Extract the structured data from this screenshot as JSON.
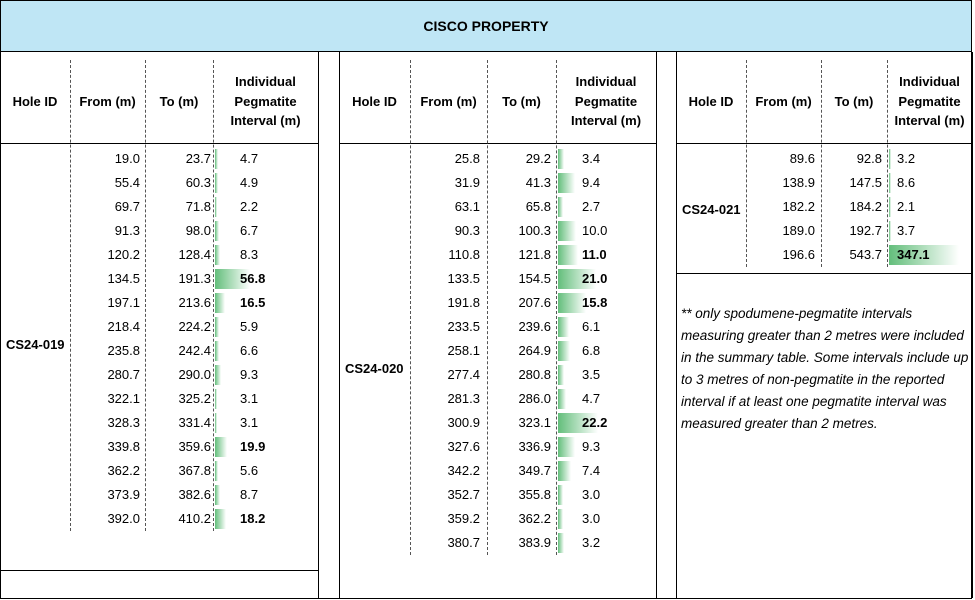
{
  "title": "CISCO PROPERTY",
  "headers": {
    "hole_id": "Hole ID",
    "from": "From (m)",
    "to": "To (m)",
    "interval": "Individual Pegmatite Interval (m)"
  },
  "groups": [
    {
      "hole_id": "CS24-019",
      "rows": [
        {
          "from": "19.0",
          "to": "23.7",
          "interval": "4.7",
          "bold": false
        },
        {
          "from": "55.4",
          "to": "60.3",
          "interval": "4.9",
          "bold": false
        },
        {
          "from": "69.7",
          "to": "71.8",
          "interval": "2.2",
          "bold": false
        },
        {
          "from": "91.3",
          "to": "98.0",
          "interval": "6.7",
          "bold": false
        },
        {
          "from": "120.2",
          "to": "128.4",
          "interval": "8.3",
          "bold": false
        },
        {
          "from": "134.5",
          "to": "191.3",
          "interval": "56.8",
          "bold": true
        },
        {
          "from": "197.1",
          "to": "213.6",
          "interval": "16.5",
          "bold": true
        },
        {
          "from": "218.4",
          "to": "224.2",
          "interval": "5.9",
          "bold": false
        },
        {
          "from": "235.8",
          "to": "242.4",
          "interval": "6.6",
          "bold": false
        },
        {
          "from": "280.7",
          "to": "290.0",
          "interval": "9.3",
          "bold": false
        },
        {
          "from": "322.1",
          "to": "325.2",
          "interval": "3.1",
          "bold": false
        },
        {
          "from": "328.3",
          "to": "331.4",
          "interval": "3.1",
          "bold": false
        },
        {
          "from": "339.8",
          "to": "359.6",
          "interval": "19.9",
          "bold": true
        },
        {
          "from": "362.2",
          "to": "367.8",
          "interval": "5.6",
          "bold": false
        },
        {
          "from": "373.9",
          "to": "382.6",
          "interval": "8.7",
          "bold": false
        },
        {
          "from": "392.0",
          "to": "410.2",
          "interval": "18.2",
          "bold": true
        }
      ]
    },
    {
      "hole_id": "CS24-020",
      "rows": [
        {
          "from": "25.8",
          "to": "29.2",
          "interval": "3.4",
          "bold": false
        },
        {
          "from": "31.9",
          "to": "41.3",
          "interval": "9.4",
          "bold": false
        },
        {
          "from": "63.1",
          "to": "65.8",
          "interval": "2.7",
          "bold": false
        },
        {
          "from": "90.3",
          "to": "100.3",
          "interval": "10.0",
          "bold": false
        },
        {
          "from": "110.8",
          "to": "121.8",
          "interval": "11.0",
          "bold": true
        },
        {
          "from": "133.5",
          "to": "154.5",
          "interval": "21.0",
          "bold": true
        },
        {
          "from": "191.8",
          "to": "207.6",
          "interval": "15.8",
          "bold": true
        },
        {
          "from": "233.5",
          "to": "239.6",
          "interval": "6.1",
          "bold": false
        },
        {
          "from": "258.1",
          "to": "264.9",
          "interval": "6.8",
          "bold": false
        },
        {
          "from": "277.4",
          "to": "280.8",
          "interval": "3.5",
          "bold": false
        },
        {
          "from": "281.3",
          "to": "286.0",
          "interval": "4.7",
          "bold": false
        },
        {
          "from": "300.9",
          "to": "323.1",
          "interval": "22.2",
          "bold": true
        },
        {
          "from": "327.6",
          "to": "336.9",
          "interval": "9.3",
          "bold": false
        },
        {
          "from": "342.2",
          "to": "349.7",
          "interval": "7.4",
          "bold": false
        },
        {
          "from": "352.7",
          "to": "355.8",
          "interval": "3.0",
          "bold": false
        },
        {
          "from": "359.2",
          "to": "362.2",
          "interval": "3.0",
          "bold": false
        },
        {
          "from": "380.7",
          "to": "383.9",
          "interval": "3.2",
          "bold": false
        }
      ]
    },
    {
      "hole_id": "CS24-021",
      "rows": [
        {
          "from": "89.6",
          "to": "92.8",
          "interval": "3.2",
          "bold": false
        },
        {
          "from": "138.9",
          "to": "147.5",
          "interval": "8.6",
          "bold": false
        },
        {
          "from": "182.2",
          "to": "184.2",
          "interval": "2.1",
          "bold": false
        },
        {
          "from": "189.0",
          "to": "192.7",
          "interval": "3.7",
          "bold": false
        },
        {
          "from": "196.6",
          "to": "543.7",
          "interval": "347.1",
          "bold": true
        }
      ]
    }
  ],
  "note": "** only spodumene-pegmatite intervals measuring greater than 2 metres were included in the summary table.  Some intervals include up to 3 metres of non-pegmatite in the reported interval if at least one pegmatite interval was measured greater than 2 metres.",
  "colors": {
    "title_background": "#bfe6f5",
    "data_bar": "#63be7b"
  }
}
